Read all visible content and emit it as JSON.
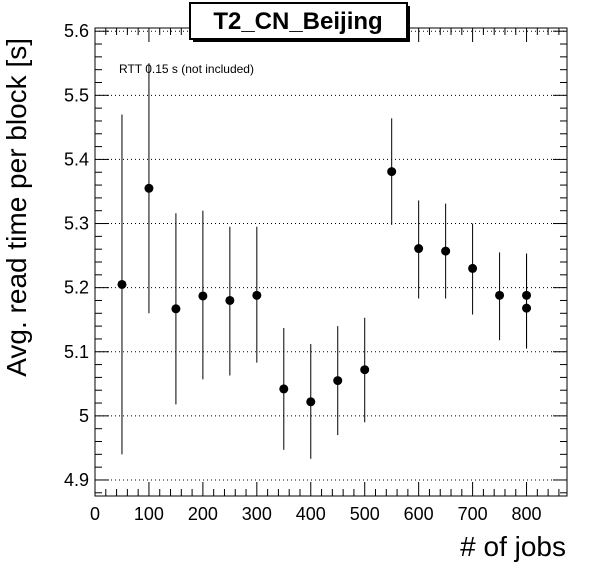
{
  "chart_data": {
    "type": "scatter",
    "title": "T2_CN_Beijing",
    "xlabel": "# of jobs",
    "ylabel": "Avg. read time per block [s]",
    "annotation": "RTT 0.15 s (not included)",
    "xlim": [
      0,
      875
    ],
    "ylim": [
      4.875,
      5.605
    ],
    "grid": "y-dotted",
    "x_ticks": [
      0,
      100,
      200,
      300,
      400,
      500,
      600,
      700,
      800
    ],
    "y_ticks": [
      4.9,
      5.0,
      5.1,
      5.2,
      5.3,
      5.4,
      5.5,
      5.6
    ],
    "x_tick_labels": [
      "0",
      "100",
      "200",
      "300",
      "400",
      "500",
      "600",
      "700",
      "800"
    ],
    "y_tick_labels": [
      "4.9",
      "5",
      "5.1",
      "5.2",
      "5.3",
      "5.4",
      "5.5",
      "5.6"
    ],
    "points": [
      {
        "x": 50,
        "y": 5.205,
        "err_low": 4.94,
        "err_high": 5.47
      },
      {
        "x": 100,
        "y": 5.355,
        "err_low": 5.16,
        "err_high": 5.55
      },
      {
        "x": 150,
        "y": 5.167,
        "err_low": 5.018,
        "err_high": 5.316
      },
      {
        "x": 200,
        "y": 5.187,
        "err_low": 5.057,
        "err_high": 5.32
      },
      {
        "x": 250,
        "y": 5.18,
        "err_low": 5.063,
        "err_high": 5.295
      },
      {
        "x": 300,
        "y": 5.188,
        "err_low": 5.083,
        "err_high": 5.295
      },
      {
        "x": 350,
        "y": 5.042,
        "err_low": 4.947,
        "err_high": 5.137
      },
      {
        "x": 400,
        "y": 5.022,
        "err_low": 4.933,
        "err_high": 5.112
      },
      {
        "x": 450,
        "y": 5.055,
        "err_low": 4.97,
        "err_high": 5.14
      },
      {
        "x": 500,
        "y": 5.072,
        "err_low": 4.99,
        "err_high": 5.153
      },
      {
        "x": 550,
        "y": 5.381,
        "err_low": 5.298,
        "err_high": 5.464
      },
      {
        "x": 600,
        "y": 5.261,
        "err_low": 5.183,
        "err_high": 5.336
      },
      {
        "x": 650,
        "y": 5.257,
        "err_low": 5.183,
        "err_high": 5.331
      },
      {
        "x": 700,
        "y": 5.23,
        "err_low": 5.158,
        "err_high": 5.3
      },
      {
        "x": 750,
        "y": 5.188,
        "err_low": 5.118,
        "err_high": 5.255
      },
      {
        "x": 800,
        "y": 5.188,
        "err_low": 5.105,
        "err_high": 5.253
      },
      {
        "x": 800,
        "y": 5.168,
        "err_low": 5.105,
        "err_high": 5.253
      }
    ]
  }
}
